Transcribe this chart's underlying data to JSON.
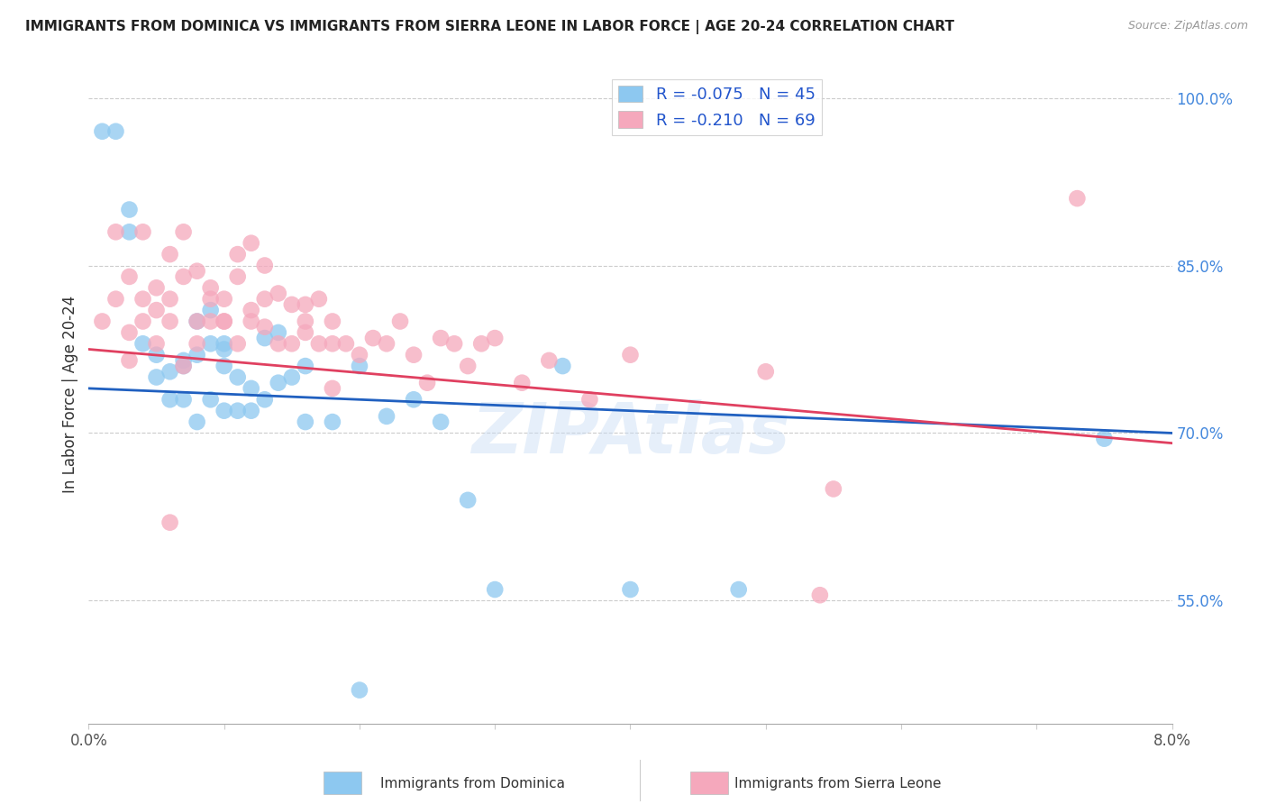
{
  "title": "IMMIGRANTS FROM DOMINICA VS IMMIGRANTS FROM SIERRA LEONE IN LABOR FORCE | AGE 20-24 CORRELATION CHART",
  "source": "Source: ZipAtlas.com",
  "ylabel": "In Labor Force | Age 20-24",
  "x_min": 0.0,
  "x_max": 0.08,
  "y_min": 0.44,
  "y_max": 1.03,
  "y_tick_labels_right": [
    55.0,
    70.0,
    85.0,
    100.0
  ],
  "blue_color": "#8DC8F0",
  "pink_color": "#F5A8BC",
  "blue_line_color": "#2060C0",
  "pink_line_color": "#E04060",
  "legend_label_blue": "R = -0.075   N = 45",
  "legend_label_pink": "R = -0.210   N = 69",
  "bottom_label_blue": "Immigrants from Dominica",
  "bottom_label_pink": "Immigrants from Sierra Leone",
  "watermark": "ZIPAtlas",
  "blue_intercept": 0.74,
  "blue_slope": -0.5,
  "pink_intercept": 0.775,
  "pink_slope": -1.05,
  "blue_x": [
    0.001,
    0.002,
    0.003,
    0.003,
    0.004,
    0.005,
    0.005,
    0.006,
    0.006,
    0.007,
    0.007,
    0.007,
    0.008,
    0.008,
    0.009,
    0.009,
    0.01,
    0.01,
    0.01,
    0.011,
    0.011,
    0.012,
    0.013,
    0.013,
    0.014,
    0.015,
    0.016,
    0.018,
    0.02,
    0.022,
    0.024,
    0.026,
    0.028,
    0.03,
    0.035,
    0.04,
    0.048,
    0.008,
    0.009,
    0.01,
    0.012,
    0.014,
    0.016,
    0.02,
    0.075
  ],
  "blue_y": [
    0.97,
    0.97,
    0.88,
    0.9,
    0.78,
    0.75,
    0.77,
    0.755,
    0.73,
    0.73,
    0.76,
    0.765,
    0.77,
    0.8,
    0.81,
    0.78,
    0.78,
    0.775,
    0.76,
    0.75,
    0.72,
    0.74,
    0.785,
    0.73,
    0.79,
    0.75,
    0.76,
    0.71,
    0.76,
    0.715,
    0.73,
    0.71,
    0.64,
    0.56,
    0.76,
    0.56,
    0.56,
    0.71,
    0.73,
    0.72,
    0.72,
    0.745,
    0.71,
    0.47,
    0.695
  ],
  "pink_x": [
    0.001,
    0.002,
    0.002,
    0.003,
    0.003,
    0.004,
    0.004,
    0.005,
    0.005,
    0.006,
    0.006,
    0.007,
    0.007,
    0.008,
    0.008,
    0.009,
    0.009,
    0.01,
    0.01,
    0.011,
    0.011,
    0.012,
    0.012,
    0.013,
    0.013,
    0.014,
    0.015,
    0.016,
    0.016,
    0.017,
    0.018,
    0.018,
    0.019,
    0.02,
    0.021,
    0.022,
    0.023,
    0.024,
    0.025,
    0.026,
    0.027,
    0.028,
    0.029,
    0.03,
    0.032,
    0.034,
    0.037,
    0.04,
    0.05,
    0.055,
    0.003,
    0.004,
    0.005,
    0.006,
    0.007,
    0.008,
    0.009,
    0.01,
    0.011,
    0.012,
    0.013,
    0.014,
    0.015,
    0.016,
    0.017,
    0.018,
    0.073,
    0.054,
    0.006
  ],
  "pink_y": [
    0.8,
    0.88,
    0.82,
    0.84,
    0.79,
    0.88,
    0.82,
    0.83,
    0.81,
    0.86,
    0.82,
    0.88,
    0.84,
    0.845,
    0.8,
    0.83,
    0.82,
    0.82,
    0.8,
    0.84,
    0.86,
    0.87,
    0.81,
    0.85,
    0.795,
    0.825,
    0.815,
    0.815,
    0.79,
    0.82,
    0.8,
    0.78,
    0.78,
    0.77,
    0.785,
    0.78,
    0.8,
    0.77,
    0.745,
    0.785,
    0.78,
    0.76,
    0.78,
    0.785,
    0.745,
    0.765,
    0.73,
    0.77,
    0.755,
    0.65,
    0.765,
    0.8,
    0.78,
    0.8,
    0.76,
    0.78,
    0.8,
    0.8,
    0.78,
    0.8,
    0.82,
    0.78,
    0.78,
    0.8,
    0.78,
    0.74,
    0.91,
    0.555,
    0.62
  ]
}
